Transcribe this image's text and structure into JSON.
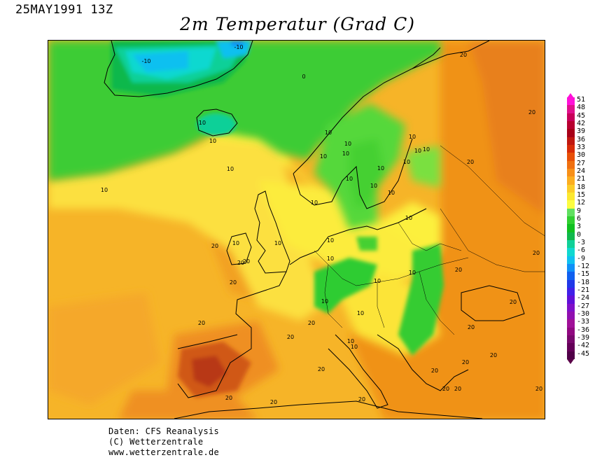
{
  "header": {
    "datetime": "25MAY1991 13Z",
    "title": "2m Temperatur (Grad C)"
  },
  "legend": {
    "labels": [
      "51",
      "48",
      "45",
      "42",
      "39",
      "36",
      "33",
      "30",
      "27",
      "24",
      "21",
      "18",
      "15",
      "12",
      "9",
      "6",
      "3",
      "0",
      "-3",
      "-6",
      "-9",
      "-12",
      "-15",
      "-18",
      "-21",
      "-24",
      "-27",
      "-30",
      "-33",
      "-36",
      "-39",
      "-42",
      "-45"
    ],
    "colors": [
      "#ff10d8",
      "#e0108c",
      "#c8005a",
      "#b80030",
      "#a80018",
      "#c01810",
      "#d82c08",
      "#e85008",
      "#f07010",
      "#f89018",
      "#fcae20",
      "#fccc28",
      "#fce830",
      "#fcfc40",
      "#60e060",
      "#30d030",
      "#10c020",
      "#10b84c",
      "#10d098",
      "#10d8d0",
      "#10c0f0",
      "#1090f8",
      "#1060f0",
      "#2038e8",
      "#4020e8",
      "#6010d8",
      "#8010c8",
      "#9010b0",
      "#a01098",
      "#900880",
      "#78086c",
      "#640058",
      "#500048"
    ]
  },
  "map": {
    "contour_labels": [
      "-10",
      "-10",
      "0",
      "10",
      "10",
      "10",
      "10",
      "10",
      "10",
      "10",
      "10",
      "10",
      "10",
      "10",
      "10",
      "10",
      "10",
      "10",
      "10",
      "10",
      "10",
      "10",
      "10",
      "10",
      "10",
      "10",
      "10",
      "10",
      "10",
      "10",
      "10",
      "20",
      "20",
      "20",
      "20",
      "20",
      "20",
      "20",
      "20",
      "20",
      "20",
      "20",
      "20",
      "20",
      "20",
      "20",
      "20",
      "20",
      "20",
      "20",
      "20",
      "20",
      "20",
      "20",
      "20"
    ]
  },
  "credits": {
    "line1": "Daten: CFS Reanalysis",
    "line2": "(C) Wetterzentrale",
    "line3": "www.wetterzentrale.de"
  }
}
